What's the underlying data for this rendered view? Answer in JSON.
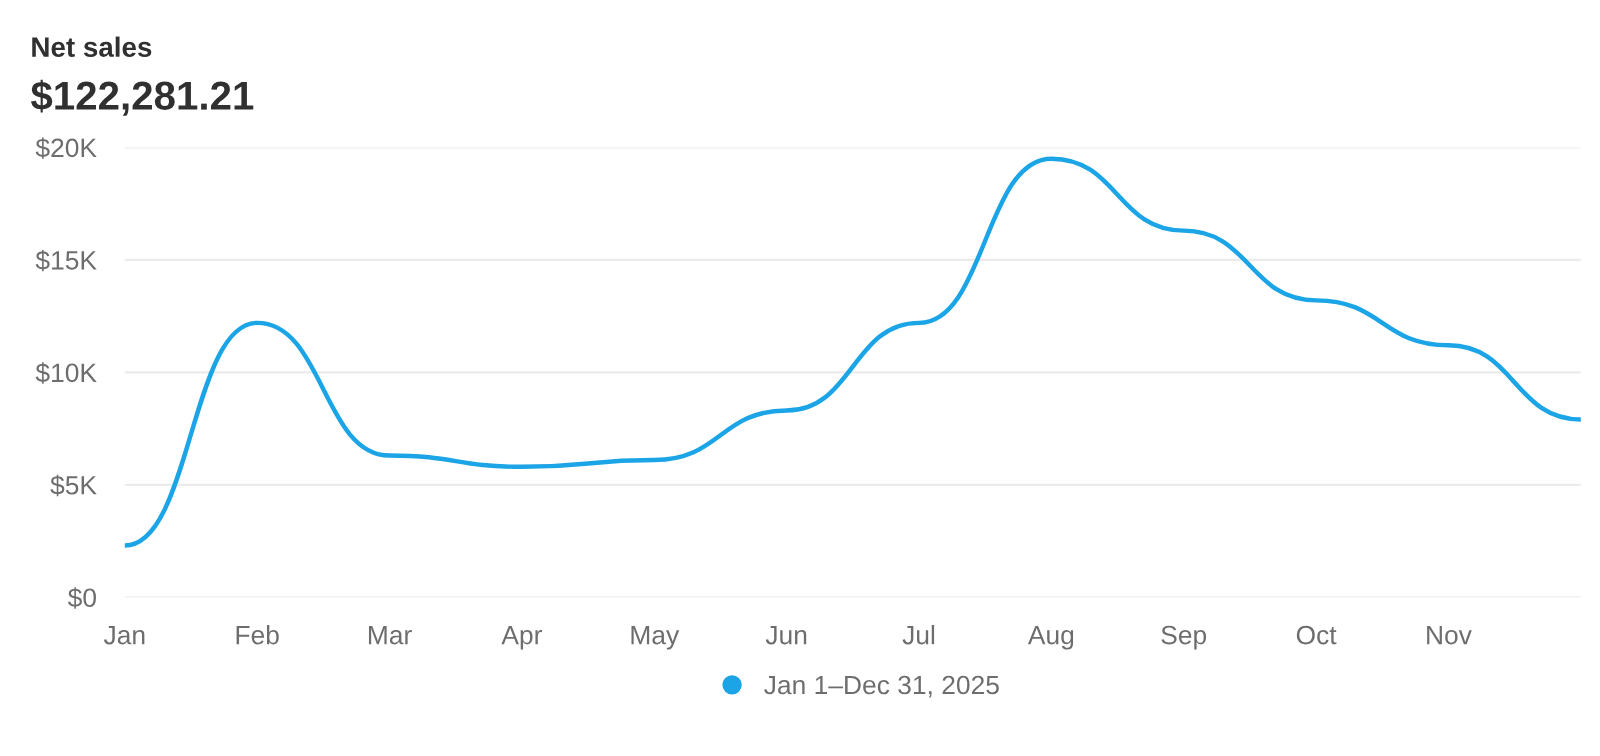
{
  "chart_data": {
    "type": "line",
    "title": "Net sales",
    "subtitle": "$122,281.21",
    "categories": [
      "Jan",
      "Feb",
      "Mar",
      "Apr",
      "May",
      "Jun",
      "Jul",
      "Aug",
      "Sep",
      "Oct",
      "Nov",
      null
    ],
    "series": [
      {
        "name": "Jan 1–Dec 31, 2025",
        "color": "#1ba4e6",
        "values": [
          2300,
          12200,
          6300,
          5800,
          6100,
          8300,
          12200,
          19500,
          16300,
          13200,
          11200,
          7900
        ]
      }
    ],
    "ylim": [
      0,
      20000
    ],
    "yticks": [
      {
        "value": 0,
        "label": "$0"
      },
      {
        "value": 5000,
        "label": "$5K"
      },
      {
        "value": 10000,
        "label": "$10K"
      },
      {
        "value": 15000,
        "label": "$15K"
      },
      {
        "value": 20000,
        "label": "$20K"
      }
    ],
    "grid": "y",
    "legend": "bottom",
    "marker": "none",
    "line_style": "solid"
  }
}
